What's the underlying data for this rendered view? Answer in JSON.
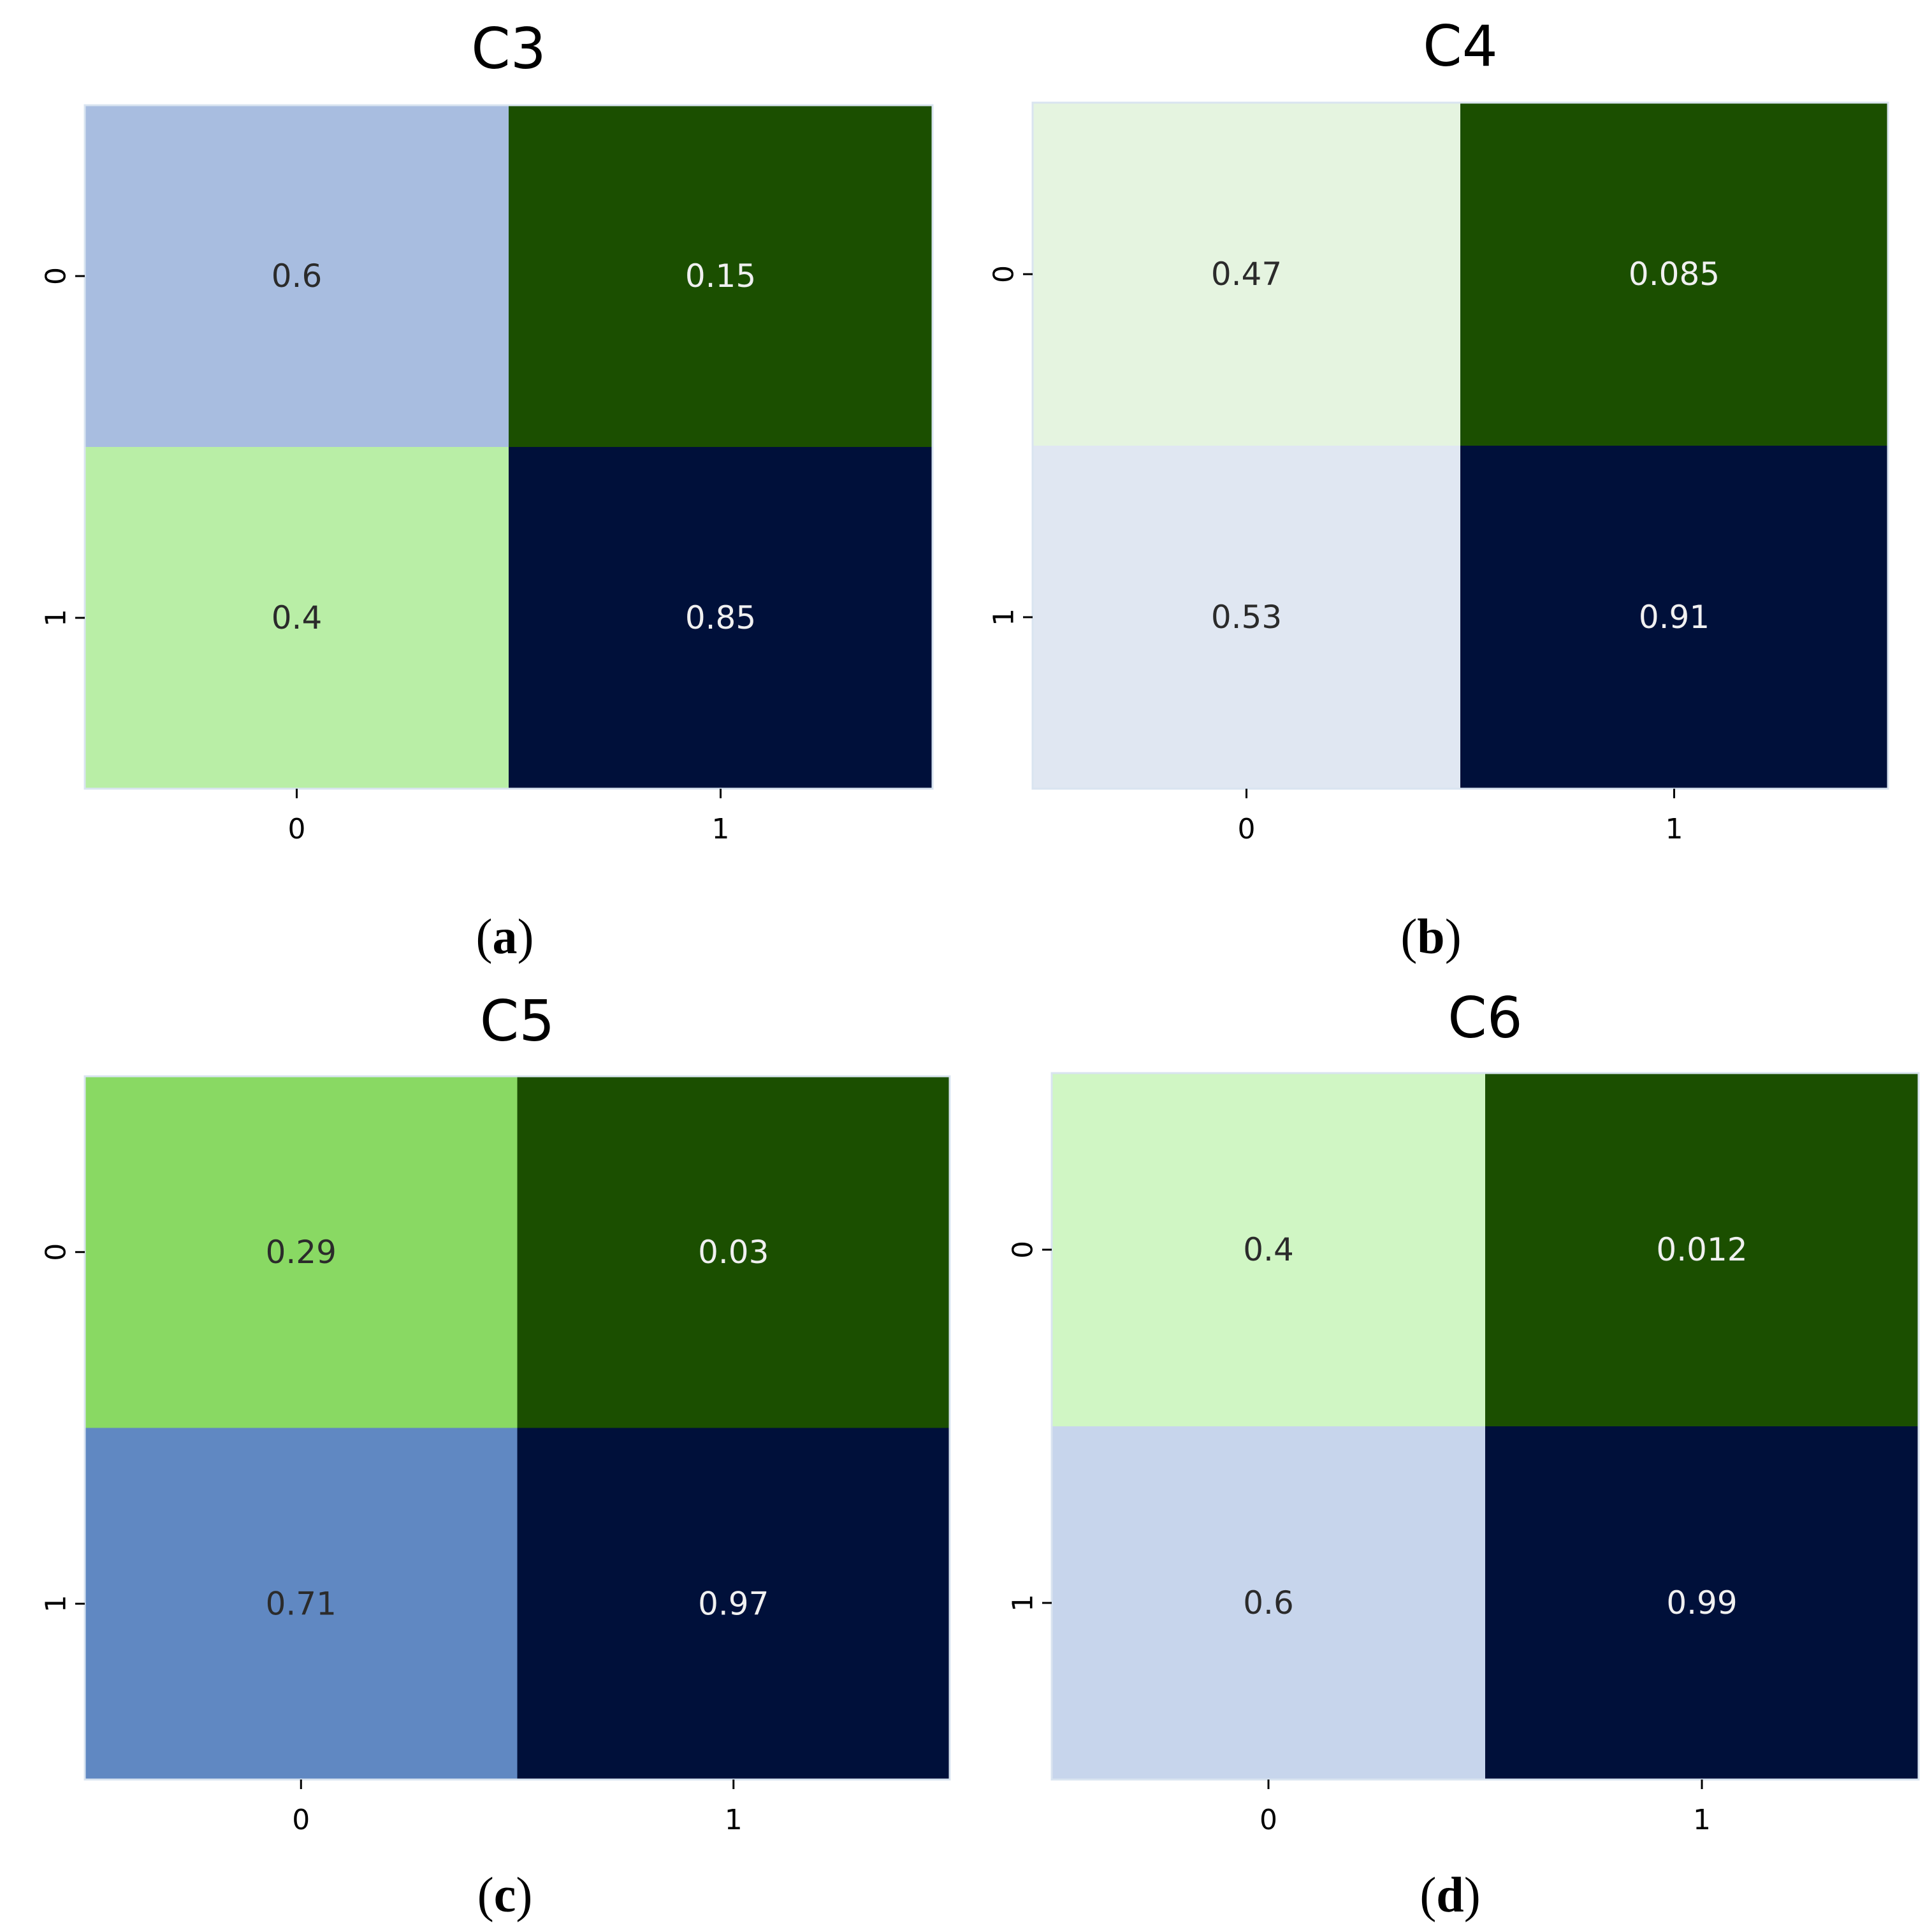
{
  "chart_data": [
    {
      "type": "heatmap",
      "title": "C3",
      "caption_letter": "a",
      "x_tick_labels": [
        "0",
        "1"
      ],
      "y_tick_labels": [
        "0",
        "1"
      ],
      "values": [
        [
          0.6,
          0.15
        ],
        [
          0.4,
          0.85
        ]
      ],
      "value_labels": [
        [
          "0.6",
          "0.15"
        ],
        [
          "0.4",
          "0.85"
        ]
      ],
      "cell_colors": [
        [
          "#a8bde0",
          "#1b4f00"
        ],
        [
          "#b9eea6",
          "#00103a"
        ]
      ]
    },
    {
      "type": "heatmap",
      "title": "C4",
      "caption_letter": "b",
      "x_tick_labels": [
        "0",
        "1"
      ],
      "y_tick_labels": [
        "0",
        "1"
      ],
      "values": [
        [
          0.47,
          0.085
        ],
        [
          0.53,
          0.91
        ]
      ],
      "value_labels": [
        [
          "0.47",
          "0.085"
        ],
        [
          "0.53",
          "0.91"
        ]
      ],
      "cell_colors": [
        [
          "#e5f4e0",
          "#1b4f00"
        ],
        [
          "#e0e7f2",
          "#00103a"
        ]
      ]
    },
    {
      "type": "heatmap",
      "title": "C5",
      "caption_letter": "c",
      "x_tick_labels": [
        "0",
        "1"
      ],
      "y_tick_labels": [
        "0",
        "1"
      ],
      "values": [
        [
          0.29,
          0.03
        ],
        [
          0.71,
          0.97
        ]
      ],
      "value_labels": [
        [
          "0.29",
          "0.03"
        ],
        [
          "0.71",
          "0.97"
        ]
      ],
      "cell_colors": [
        [
          "#89d963",
          "#1b4f00"
        ],
        [
          "#6088c2",
          "#00103a"
        ]
      ]
    },
    {
      "type": "heatmap",
      "title": "C6",
      "caption_letter": "d",
      "x_tick_labels": [
        "0",
        "1"
      ],
      "y_tick_labels": [
        "0",
        "1"
      ],
      "values": [
        [
          0.4,
          0.012
        ],
        [
          0.6,
          0.99
        ]
      ],
      "value_labels": [
        [
          "0.4",
          "0.012"
        ],
        [
          "0.6",
          "0.99"
        ]
      ],
      "cell_colors": [
        [
          "#d0f6c4",
          "#1b4f00"
        ],
        [
          "#c7d5ec",
          "#00103a"
        ]
      ]
    }
  ],
  "colors": {
    "dark_text": "#2b2b2b",
    "light_text": "#f0f0f0"
  }
}
